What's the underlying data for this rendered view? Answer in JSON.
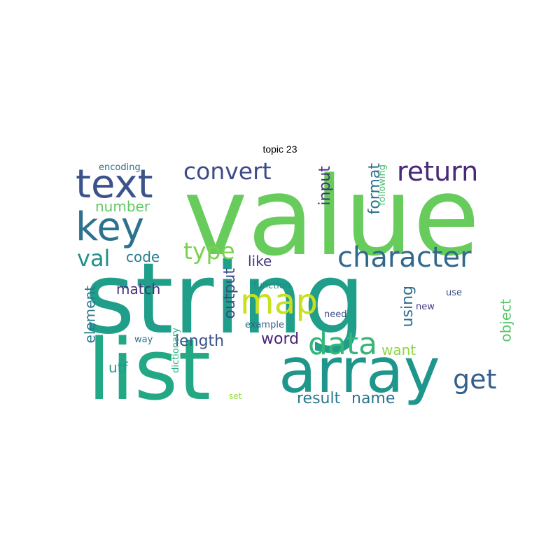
{
  "title": "topic 23",
  "words": [
    {
      "text": "value",
      "color": "#67cc5c",
      "rotate": 0
    },
    {
      "text": "string",
      "color": "#1f9e89",
      "rotate": 0
    },
    {
      "text": "list",
      "color": "#22a884",
      "rotate": 0
    },
    {
      "text": "array",
      "color": "#1f968b",
      "rotate": 0
    },
    {
      "text": "text",
      "color": "#3b528b",
      "rotate": 0
    },
    {
      "text": "key",
      "color": "#2c728e",
      "rotate": 0
    },
    {
      "text": "map",
      "color": "#c8e020",
      "rotate": 0
    },
    {
      "text": "data",
      "color": "#35b779",
      "rotate": 0
    },
    {
      "text": "character",
      "color": "#31688e",
      "rotate": 0
    },
    {
      "text": "return",
      "color": "#482878",
      "rotate": 0
    },
    {
      "text": "convert",
      "color": "#3e4a89",
      "rotate": 0
    },
    {
      "text": "type",
      "color": "#7ad151",
      "rotate": 0
    },
    {
      "text": "get",
      "color": "#355f8d",
      "rotate": 0
    },
    {
      "text": "val",
      "color": "#21918c",
      "rotate": 0
    },
    {
      "text": "number",
      "color": "#5ec962",
      "rotate": 0
    },
    {
      "text": "code",
      "color": "#277f8e",
      "rotate": 0
    },
    {
      "text": "like",
      "color": "#443983",
      "rotate": 0
    },
    {
      "text": "match",
      "color": "#472d7b",
      "rotate": 0
    },
    {
      "text": "length",
      "color": "#3b528b",
      "rotate": 0
    },
    {
      "text": "word",
      "color": "#482475",
      "rotate": 0
    },
    {
      "text": "result",
      "color": "#2a788e",
      "rotate": 0
    },
    {
      "text": "name",
      "color": "#2c728e",
      "rotate": 0
    },
    {
      "text": "want",
      "color": "#8fd744",
      "rotate": 0
    },
    {
      "text": "utf",
      "color": "#1f9a8a",
      "rotate": 0
    },
    {
      "text": "input",
      "color": "#46307e",
      "rotate": -90
    },
    {
      "text": "format",
      "color": "#2d708e",
      "rotate": -90
    },
    {
      "text": "following",
      "color": "#4ac16d",
      "rotate": -90
    },
    {
      "text": "output",
      "color": "#3e4989",
      "rotate": -90
    },
    {
      "text": "using",
      "color": "#2e6e8e",
      "rotate": -90
    },
    {
      "text": "object",
      "color": "#54c568",
      "rotate": -90
    },
    {
      "text": "element",
      "color": "#2a788e",
      "rotate": -90
    },
    {
      "text": "dictionary",
      "color": "#29af7f",
      "rotate": -90
    },
    {
      "text": "encoding",
      "color": "#2e6f8e",
      "rotate": 0
    },
    {
      "text": "function",
      "color": "#26828e",
      "rotate": 0
    },
    {
      "text": "need",
      "color": "#3b528b",
      "rotate": 0
    },
    {
      "text": "example",
      "color": "#32658e",
      "rotate": 0
    },
    {
      "text": "use",
      "color": "#3e4c8a",
      "rotate": 0
    },
    {
      "text": "new",
      "color": "#433e85",
      "rotate": 0
    },
    {
      "text": "way",
      "color": "#2b758e",
      "rotate": 0
    },
    {
      "text": "set",
      "color": "#95d840",
      "rotate": 0
    }
  ]
}
